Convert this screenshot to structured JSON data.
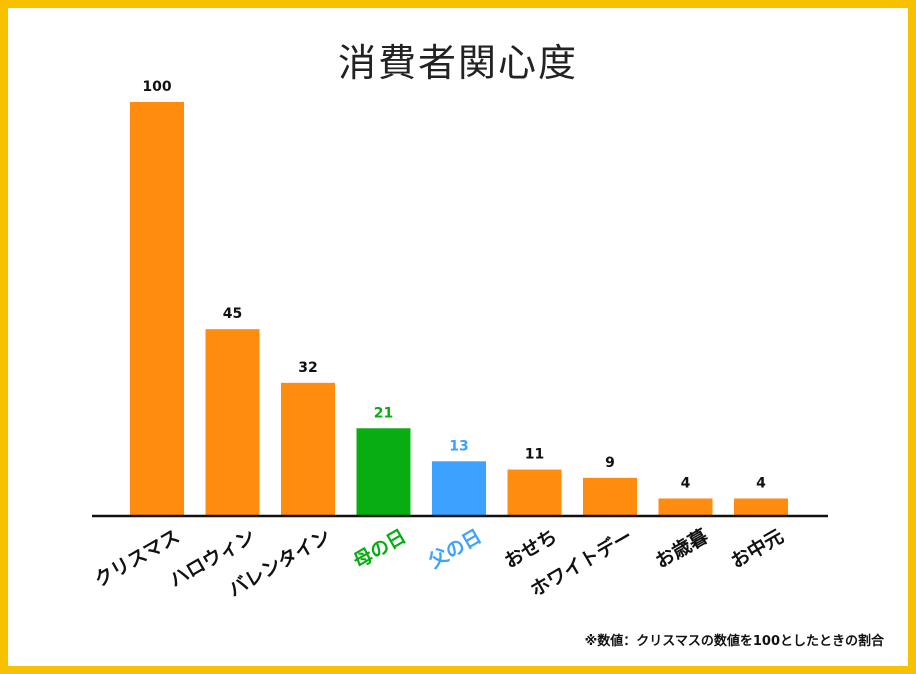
{
  "chart_data": {
    "type": "bar",
    "title": "消費者関心度",
    "categories": [
      "クリスマス",
      "ハロウィン",
      "バレンタイン",
      "母の日",
      "父の日",
      "おせち",
      "ホワイトデー",
      "お歳暮",
      "お中元"
    ],
    "values": [
      100,
      45,
      32,
      21,
      13,
      11,
      9,
      4,
      4
    ],
    "ylim": [
      0,
      100
    ],
    "xlabel": "",
    "ylabel": "",
    "grid": false,
    "colors": {
      "default": "#ff8c0f",
      "母の日": "#08ad12",
      "父の日": "#3da2ff"
    },
    "label_colors": {
      "default": "#111111",
      "母の日": "#08ad12",
      "父の日": "#3da2ff"
    },
    "footnote": "※数値：クリスマスの数値を100としたときの割合"
  },
  "style": {
    "frame_color": "#f7c100"
  }
}
